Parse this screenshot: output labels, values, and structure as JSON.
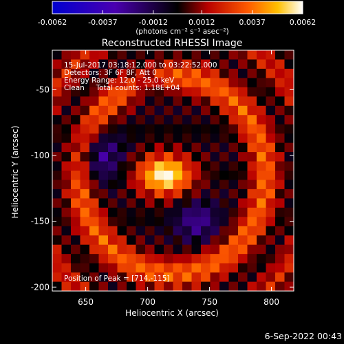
{
  "chart_data": {
    "type": "heatmap",
    "title": "Reconstructed RHESSI Image",
    "xlabel": "Heliocentric X (arcsec)",
    "ylabel": "Heliocentric Y (arcsec)",
    "xlim": [
      623,
      818
    ],
    "ylim": [
      -203,
      -20
    ],
    "x_ticks": [
      650,
      700,
      750,
      800
    ],
    "y_ticks": [
      -50,
      -100,
      -150,
      -200
    ],
    "colorbar": {
      "range": [
        -0.0062,
        0.0062
      ],
      "ticks": [
        "-0.0062",
        "-0.0037",
        "-0.0012",
        "0.0012",
        "0.0037",
        "0.0062"
      ],
      "unit_label": "(photons cm⁻² s⁻¹ asec⁻²)"
    },
    "annotations": [
      "15-Jul-2017 03:18:12.000 to 03:22:52.000",
      "Detectors: 3F 6F 8F, Att 0",
      "Energy Range: 12.0 - 25.0 keV",
      "Clean     Total counts: 1.18E+04"
    ],
    "peak_label": "Position of Peak = [714,-115]",
    "peak": {
      "x": 714,
      "y": -115,
      "value": 0.0062
    },
    "grid": false
  },
  "footer": {
    "date": "6-Sep-2022 00:43"
  }
}
